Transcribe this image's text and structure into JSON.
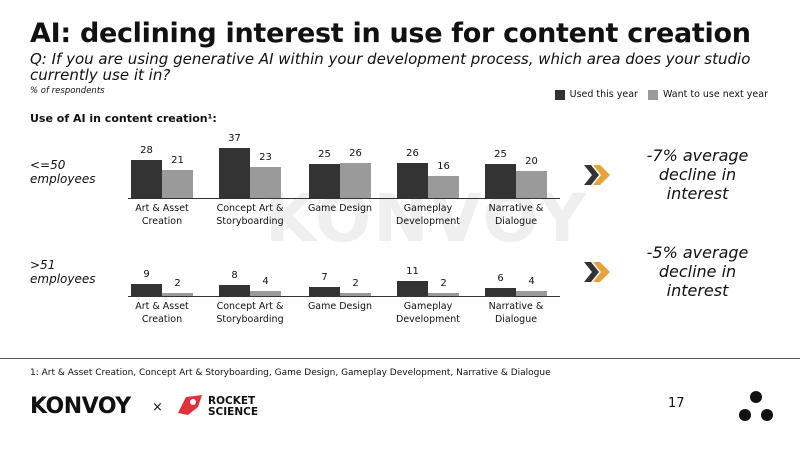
{
  "title": "AI: declining interest in use for content creation",
  "question": "Q: If you are using generative AI within your development process, which area does your studio currently use it in?",
  "note": "% of respondents",
  "section_heading": "Use of AI in content creation¹:",
  "footnote": "1: Art & Asset Creation, Concept Art & Storyboarding, Game Design, Gameplay Development, Narrative & Dialogue",
  "page_number": "17",
  "branding": {
    "konvoy": "KONVOY",
    "times": "×",
    "rocket_science": "ROCKET SCIENCE"
  },
  "chart_data": [
    {
      "type": "bar",
      "group_label": "<=50 employees",
      "categories": [
        "Art & Asset Creation",
        "Concept Art & Storyboarding",
        "Game Design",
        "Gameplay Development",
        "Narrative & Dialogue"
      ],
      "series": [
        {
          "name": "Used this year",
          "color": "#333333",
          "values": [
            28,
            37,
            25,
            26,
            25
          ]
        },
        {
          "name": "Want to use next year",
          "color": "#9a9a9a",
          "values": [
            21,
            23,
            26,
            16,
            20
          ]
        }
      ],
      "callout": "-7% average decline in interest"
    },
    {
      "type": "bar",
      "group_label": ">51 employees",
      "categories": [
        "Art & Asset Creation",
        "Concept Art & Storyboarding",
        "Game Design",
        "Gameplay Development",
        "Narrative & Dialogue"
      ],
      "series": [
        {
          "color": "#333333",
          "values": [
            9,
            8,
            7,
            11,
            6
          ]
        },
        {
          "color": "#9a9a9a",
          "values": [
            2,
            4,
            2,
            2,
            4
          ]
        }
      ],
      "callout": "-5% average decline in interest"
    }
  ]
}
